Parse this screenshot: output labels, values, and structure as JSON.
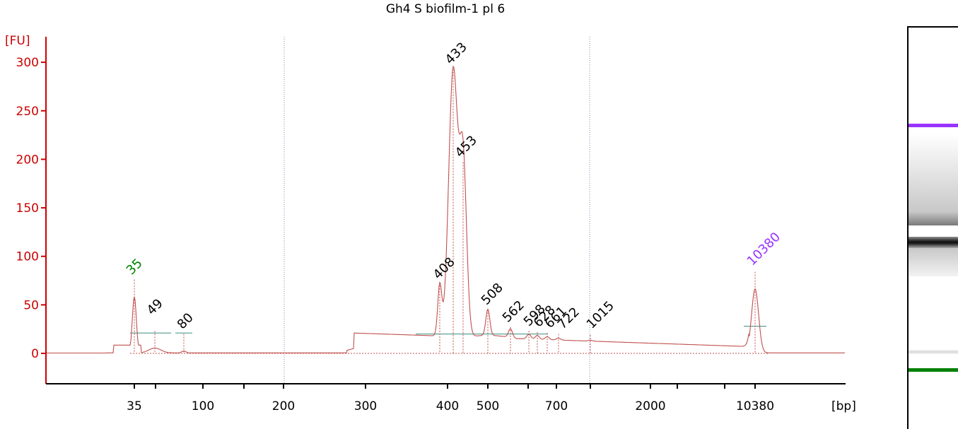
{
  "chart_data": {
    "type": "line",
    "title": "Gh4 S biofilm-1 pl 6",
    "ylabel": "[FU]",
    "xlabel": "[bp]",
    "ylim": [
      -30,
      320
    ],
    "yticks": [
      0,
      50,
      100,
      150,
      200,
      250,
      300
    ],
    "xticks": [
      "35",
      "",
      "100",
      "",
      "200",
      "300",
      "400",
      "500",
      "",
      "700",
      "",
      "2000",
      "",
      "10380"
    ],
    "grid": false,
    "colors": {
      "trace": "#c0504d",
      "axis": "#cc0000",
      "marker_lower": "#008000",
      "marker_upper": "#9933ff",
      "baseline": "#4f9a8f"
    },
    "peaks": [
      {
        "label": "35",
        "bp": 35,
        "fu": 76,
        "color": "#008000"
      },
      {
        "label": "49",
        "bp": 49,
        "fu": 23,
        "color": "#000000"
      },
      {
        "label": "80",
        "bp": 80,
        "fu": 20,
        "color": "#000000"
      },
      {
        "label": "408",
        "bp": 408,
        "fu": 70,
        "color": "#000000"
      },
      {
        "label": "433",
        "bp": 433,
        "fu": 293,
        "color": "#000000"
      },
      {
        "label": "453",
        "bp": 453,
        "fu": 197,
        "color": "#000000"
      },
      {
        "label": "508",
        "bp": 508,
        "fu": 45,
        "color": "#000000"
      },
      {
        "label": "562",
        "bp": 562,
        "fu": 27,
        "color": "#000000"
      },
      {
        "label": "598",
        "bp": 598,
        "fu": 23,
        "color": "#000000"
      },
      {
        "label": "628",
        "bp": 628,
        "fu": 22,
        "color": "#000000"
      },
      {
        "label": "661",
        "bp": 661,
        "fu": 21,
        "color": "#000000"
      },
      {
        "label": "722",
        "bp": 722,
        "fu": 20,
        "color": "#000000"
      },
      {
        "label": "1015",
        "bp": 1015,
        "fu": 19,
        "color": "#000000"
      },
      {
        "label": "10380",
        "bp": 10380,
        "fu": 84,
        "color": "#9933ff"
      }
    ]
  }
}
